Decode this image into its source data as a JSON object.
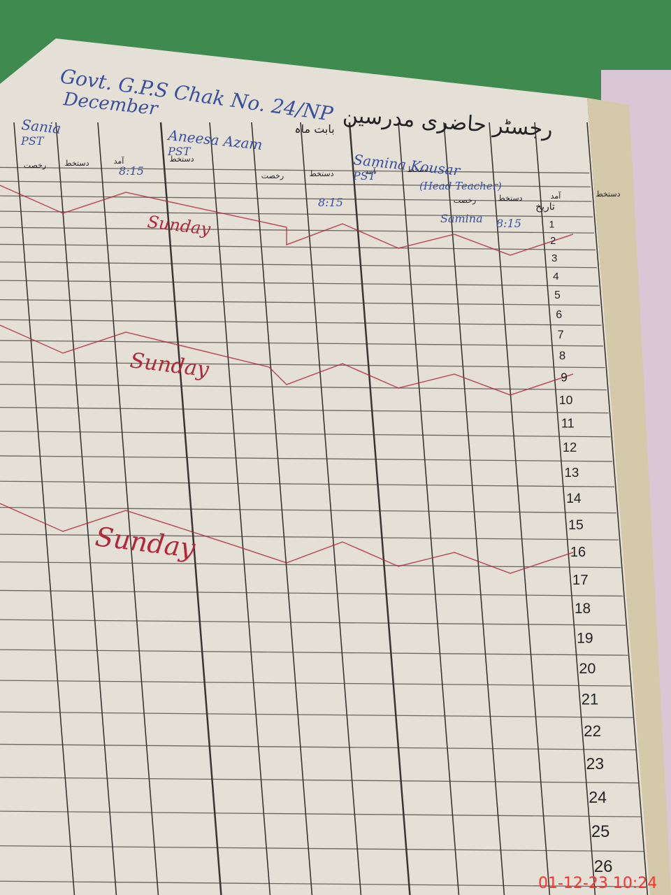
{
  "header": {
    "school": "Govt. G.P.S Chak No. 24/NP",
    "title_urdu": "رجسٹر حاضری مدرسین",
    "month_label": "بابت ماہ",
    "month": "December"
  },
  "teachers": [
    {
      "name": "Sania",
      "post": "PST"
    },
    {
      "name": "Aneesa Azam",
      "post": "PST"
    },
    {
      "name": "Samina Kousar",
      "post": "PST",
      "note": "(Head Teacher)"
    }
  ],
  "subcolumns": [
    "رخصت",
    "دستخط",
    "آمد",
    "دستخط"
  ],
  "date_label": "تاریخ",
  "entries": [
    "8:15",
    "8:15",
    "Samina",
    "8:15"
  ],
  "sundays": [
    "Sunday",
    "Sunday",
    "Sunday"
  ],
  "dates": [
    1,
    2,
    3,
    4,
    5,
    6,
    7,
    8,
    9,
    10,
    11,
    12,
    13,
    14,
    15,
    16,
    17,
    18,
    19,
    20,
    21,
    22,
    23,
    24,
    25,
    26
  ],
  "timestamp": "01-12-23 10:24"
}
